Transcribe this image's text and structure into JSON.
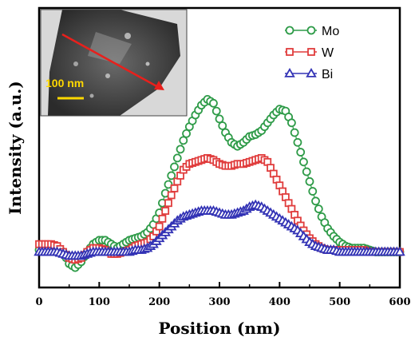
{
  "chart_data": {
    "type": "scatter",
    "title": "",
    "xlabel": "Position (nm)",
    "ylabel": "Intensity (a.u.)",
    "xlim": [
      0,
      600
    ],
    "ylim": [
      0,
      1
    ],
    "xticks": [
      0,
      100,
      200,
      300,
      400,
      500,
      600
    ],
    "yticks": [],
    "grid": false,
    "legend_position": "top-right",
    "series": [
      {
        "name": "Mo",
        "color": "#2e9b48",
        "marker": "circle",
        "x": [
          0,
          10,
          20,
          30,
          40,
          50,
          60,
          70,
          80,
          90,
          100,
          110,
          120,
          130,
          140,
          150,
          160,
          170,
          180,
          190,
          200,
          210,
          220,
          230,
          240,
          250,
          260,
          270,
          280,
          290,
          300,
          310,
          320,
          330,
          340,
          350,
          360,
          370,
          380,
          390,
          400,
          410,
          420,
          430,
          440,
          450,
          460,
          470,
          480,
          490,
          500,
          510,
          520,
          530,
          540,
          550,
          560,
          570,
          580,
          590,
          600
        ],
        "y": [
          0.11,
          0.11,
          0.11,
          0.11,
          0.1,
          0.04,
          0.02,
          0.05,
          0.1,
          0.14,
          0.16,
          0.16,
          0.14,
          0.12,
          0.14,
          0.16,
          0.17,
          0.18,
          0.2,
          0.24,
          0.3,
          0.4,
          0.49,
          0.58,
          0.67,
          0.74,
          0.8,
          0.85,
          0.88,
          0.86,
          0.78,
          0.71,
          0.66,
          0.64,
          0.66,
          0.69,
          0.7,
          0.72,
          0.76,
          0.8,
          0.83,
          0.82,
          0.76,
          0.66,
          0.56,
          0.46,
          0.36,
          0.28,
          0.22,
          0.18,
          0.15,
          0.13,
          0.12,
          0.12,
          0.12,
          0.11,
          0.1,
          0.1,
          0.1,
          0.1,
          0.1
        ]
      },
      {
        "name": "W",
        "color": "#e03c3c",
        "marker": "square",
        "x": [
          0,
          10,
          20,
          30,
          40,
          50,
          60,
          70,
          80,
          90,
          100,
          110,
          120,
          130,
          140,
          150,
          160,
          170,
          180,
          190,
          200,
          210,
          220,
          230,
          240,
          250,
          260,
          270,
          280,
          290,
          300,
          310,
          320,
          330,
          340,
          350,
          360,
          370,
          380,
          390,
          400,
          410,
          420,
          430,
          440,
          450,
          460,
          470,
          480,
          490,
          500,
          510,
          520,
          530,
          540,
          550,
          560,
          570,
          580,
          590,
          600
        ],
        "y": [
          0.14,
          0.14,
          0.14,
          0.13,
          0.1,
          0.07,
          0.06,
          0.07,
          0.1,
          0.12,
          0.12,
          0.11,
          0.09,
          0.09,
          0.1,
          0.11,
          0.13,
          0.14,
          0.15,
          0.18,
          0.23,
          0.31,
          0.39,
          0.46,
          0.52,
          0.55,
          0.56,
          0.57,
          0.58,
          0.57,
          0.55,
          0.54,
          0.54,
          0.55,
          0.55,
          0.56,
          0.57,
          0.58,
          0.56,
          0.5,
          0.44,
          0.38,
          0.32,
          0.26,
          0.21,
          0.17,
          0.14,
          0.12,
          0.11,
          0.11,
          0.11,
          0.11,
          0.11,
          0.11,
          0.11,
          0.1,
          0.1,
          0.1,
          0.1,
          0.1,
          0.1
        ]
      },
      {
        "name": "Bi",
        "color": "#3333b5",
        "marker": "triangle",
        "x": [
          0,
          10,
          20,
          30,
          40,
          50,
          60,
          70,
          80,
          90,
          100,
          110,
          120,
          130,
          140,
          150,
          160,
          170,
          180,
          190,
          200,
          210,
          220,
          230,
          240,
          250,
          260,
          270,
          280,
          290,
          300,
          310,
          320,
          330,
          340,
          350,
          360,
          370,
          380,
          390,
          400,
          410,
          420,
          430,
          440,
          450,
          460,
          470,
          480,
          490,
          500,
          510,
          520,
          530,
          540,
          550,
          560,
          570,
          580,
          590,
          600
        ],
        "y": [
          0.1,
          0.1,
          0.1,
          0.1,
          0.09,
          0.08,
          0.08,
          0.08,
          0.09,
          0.1,
          0.1,
          0.1,
          0.1,
          0.1,
          0.1,
          0.1,
          0.11,
          0.11,
          0.12,
          0.14,
          0.17,
          0.2,
          0.23,
          0.26,
          0.28,
          0.29,
          0.3,
          0.31,
          0.31,
          0.31,
          0.3,
          0.29,
          0.29,
          0.3,
          0.31,
          0.33,
          0.34,
          0.33,
          0.31,
          0.29,
          0.27,
          0.25,
          0.23,
          0.21,
          0.18,
          0.15,
          0.13,
          0.12,
          0.11,
          0.11,
          0.1,
          0.1,
          0.1,
          0.1,
          0.1,
          0.1,
          0.1,
          0.1,
          0.1,
          0.1,
          0.1
        ]
      }
    ],
    "inset": {
      "description_shown": false,
      "scale_bar_label": "100 nm",
      "arrow_color": "#e8201c",
      "scale_bar_color": "#ffd800"
    }
  }
}
